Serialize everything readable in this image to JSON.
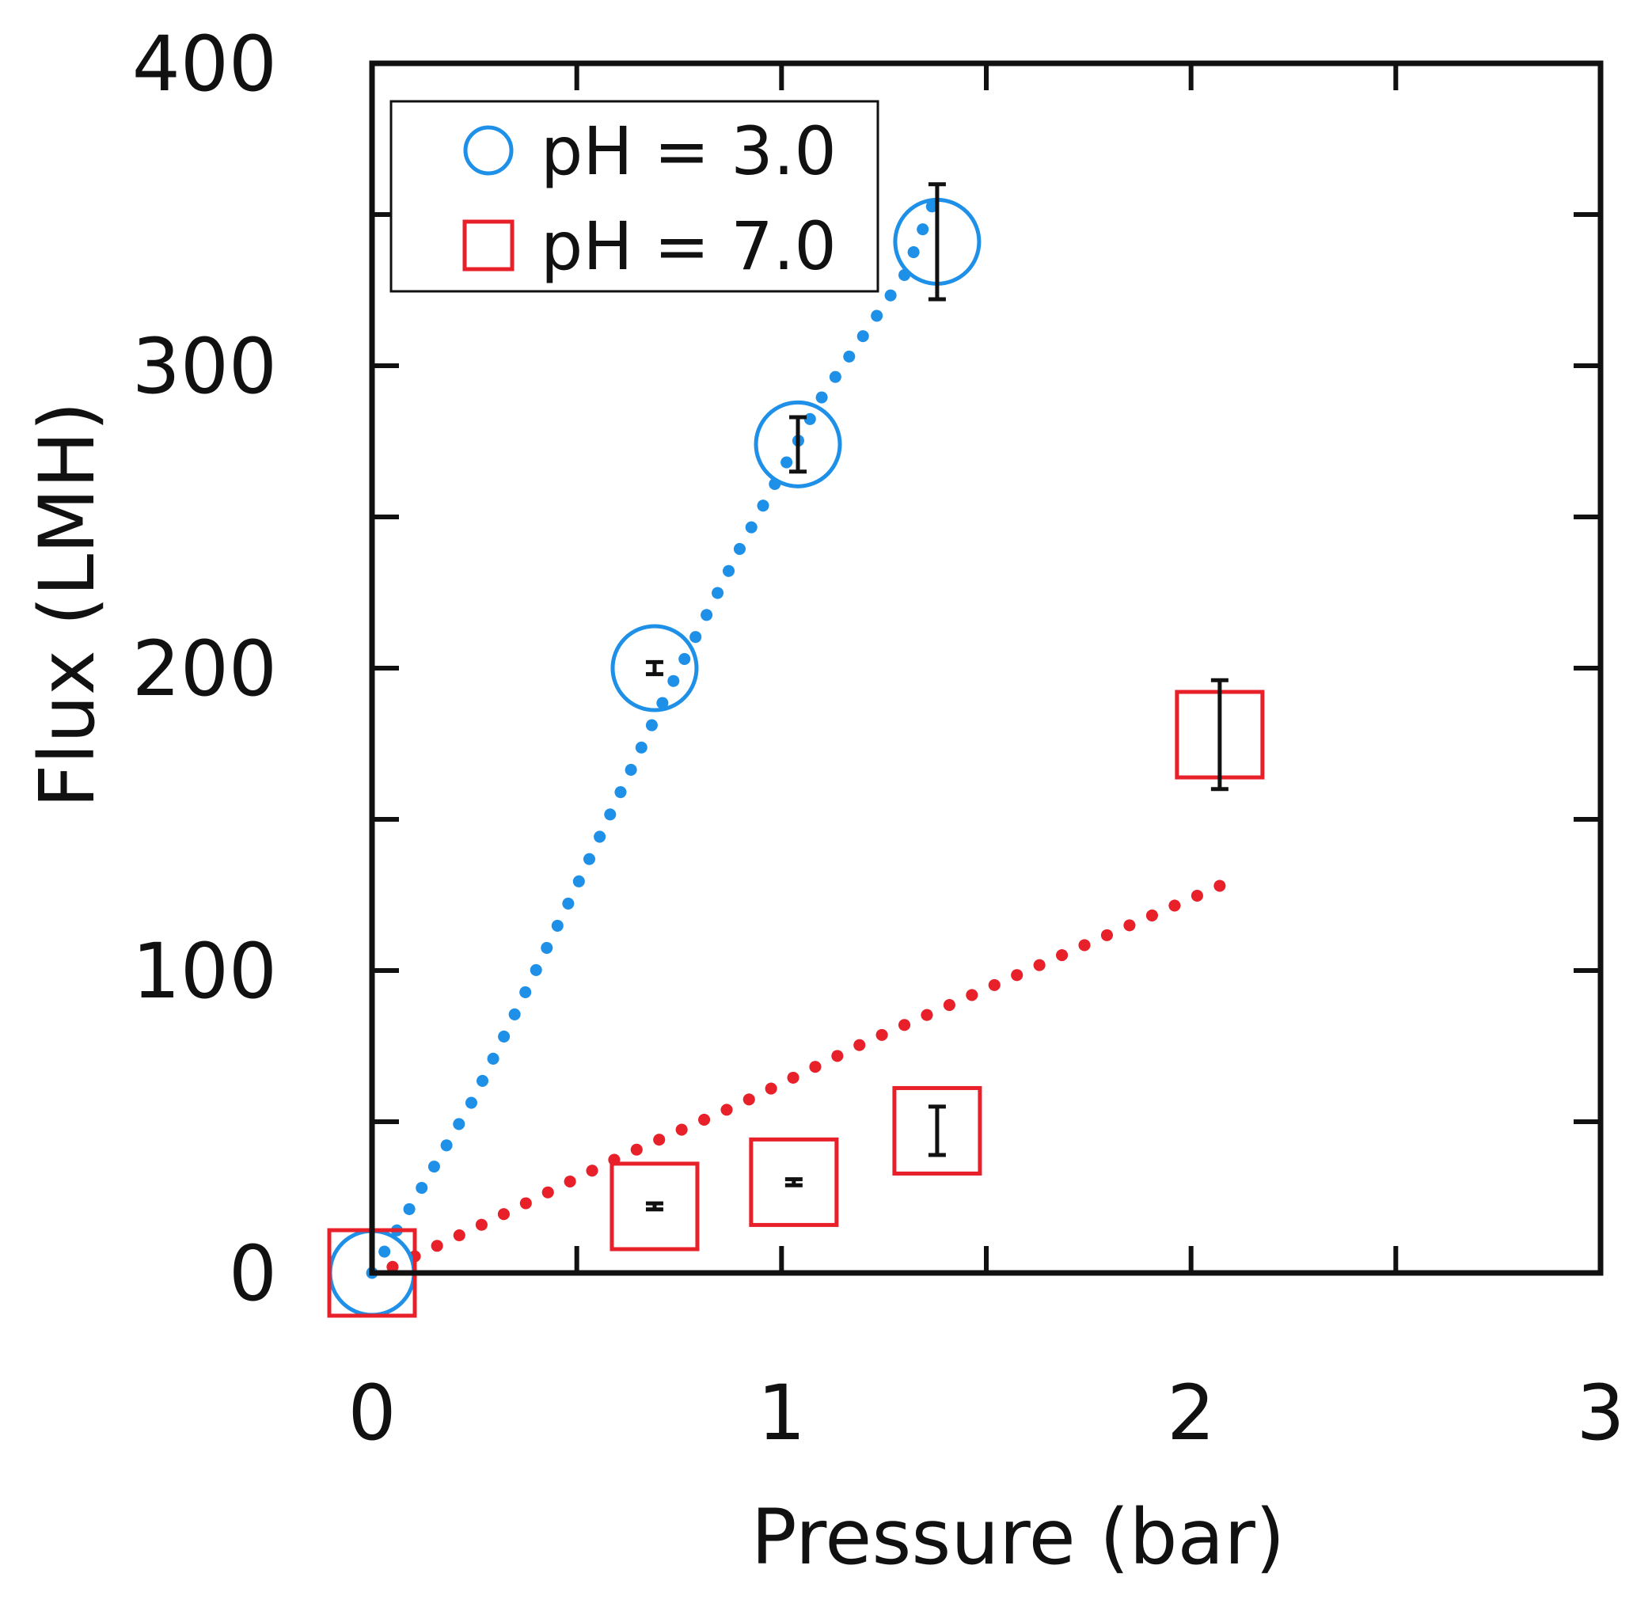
{
  "chart_data": {
    "type": "scatter",
    "xlabel": "Pressure (bar)",
    "ylabel": "Flux (LMH)",
    "xlim": [
      0,
      3
    ],
    "ylim": [
      0,
      400
    ],
    "x_ticks": [
      0,
      1,
      2,
      3
    ],
    "x_minor_ticks": [
      0.5,
      1.5,
      2.5
    ],
    "y_ticks": [
      0,
      100,
      200,
      300,
      400
    ],
    "y_minor_ticks": [
      50,
      150,
      250,
      350
    ],
    "grid": false,
    "legend": {
      "position": "top-left"
    },
    "series": [
      {
        "name": "pH = 3.0",
        "marker": "circle",
        "color": "#1E90E8",
        "points": [
          {
            "x": 0.0,
            "y": 0,
            "err": 0
          },
          {
            "x": 0.69,
            "y": 200,
            "err": 2
          },
          {
            "x": 1.04,
            "y": 274,
            "err": 9
          },
          {
            "x": 1.38,
            "y": 341,
            "err": 19
          }
        ],
        "fit": {
          "style": "dotted",
          "x": [
            0.0,
            0.25,
            0.5,
            0.7,
            0.9,
            1.1,
            1.3,
            1.38
          ],
          "y": [
            0,
            58,
            128,
            186,
            240,
            290,
            330,
            357
          ]
        }
      },
      {
        "name": "pH = 7.0",
        "marker": "square",
        "color": "#E8202A",
        "points": [
          {
            "x": 0.0,
            "y": 0,
            "err": 0
          },
          {
            "x": 0.69,
            "y": 22,
            "err": 1
          },
          {
            "x": 1.03,
            "y": 30,
            "err": 1
          },
          {
            "x": 1.38,
            "y": 47,
            "err": 8
          },
          {
            "x": 2.07,
            "y": 178,
            "err": 18
          }
        ],
        "fit": {
          "style": "dotted",
          "x": [
            0.05,
            0.3,
            0.6,
            0.9,
            1.2,
            1.5,
            1.8,
            2.07
          ],
          "y": [
            2,
            18,
            38,
            56,
            76,
            94,
            112,
            128
          ]
        }
      }
    ]
  }
}
